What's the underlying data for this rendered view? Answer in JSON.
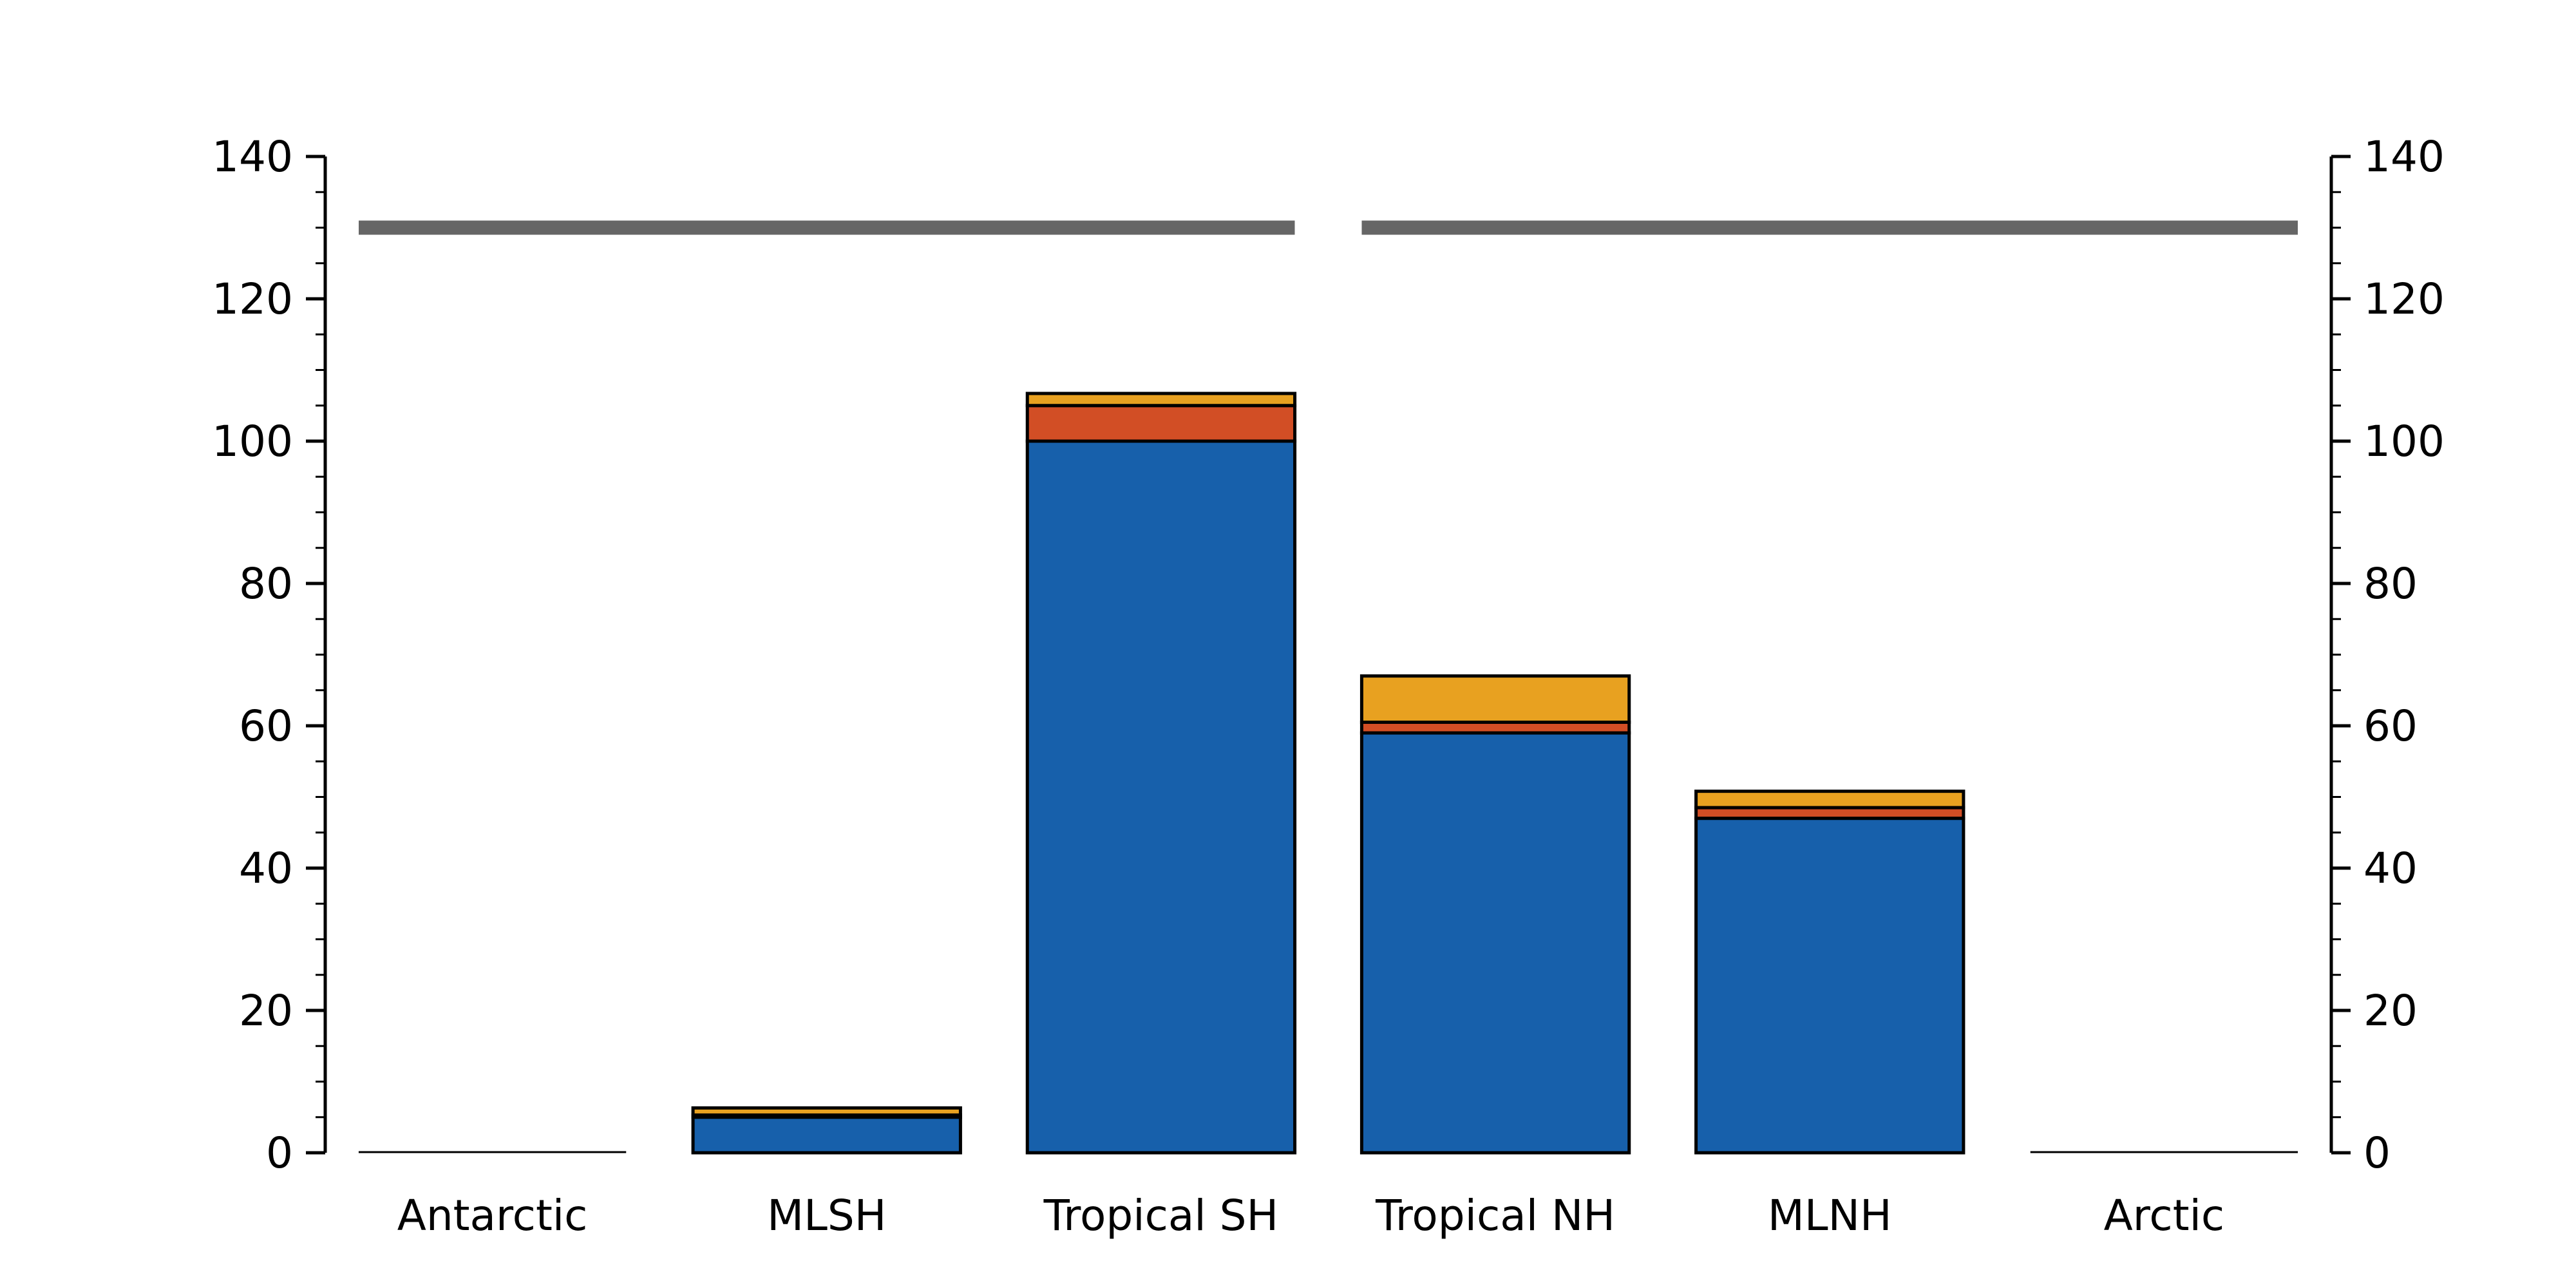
{
  "chart_data": {
    "type": "bar",
    "stacked": true,
    "categories": [
      "Antarctic",
      "MLSH",
      "Tropical SH",
      "Tropical NH",
      "MLNH",
      "Arctic"
    ],
    "series": [
      {
        "values": [
          0,
          5,
          100,
          59,
          47,
          0
        ],
        "color": "#1760ab"
      },
      {
        "values": [
          0,
          0.3,
          5,
          1.5,
          1.5,
          0
        ],
        "color": "#d24e25"
      },
      {
        "values": [
          0,
          1,
          1.7,
          6.5,
          2.3,
          0
        ],
        "color": "#e8a120"
      }
    ],
    "reference_lines": [
      {
        "y": 130,
        "x_from": "Antarctic",
        "x_to": "Tropical SH",
        "color": "#666666"
      },
      {
        "y": 130,
        "x_from": "Tropical NH",
        "x_to": "Arctic",
        "color": "#666666"
      }
    ],
    "ylim": [
      0,
      140
    ],
    "yticks": [
      "0",
      "20",
      "40",
      "60",
      "80",
      "100",
      "120",
      "140"
    ],
    "ytick_values": [
      0,
      20,
      40,
      60,
      80,
      100,
      120,
      140
    ],
    "minor_tick_step": 5,
    "right_axis_mirror": true,
    "title": "",
    "xlabel": "",
    "ylabel": "",
    "grid": false,
    "legend": "none"
  }
}
